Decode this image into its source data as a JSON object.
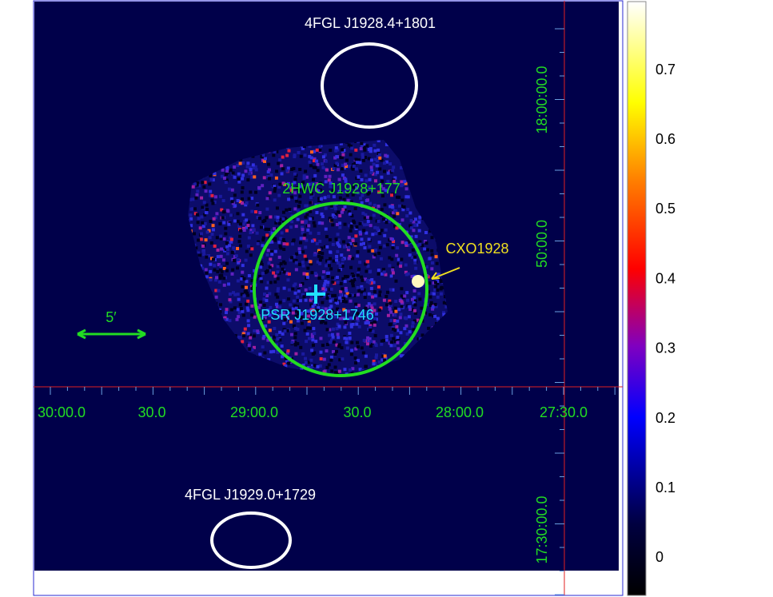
{
  "annotations": {
    "fermi_north": "4FGL J1928.4+1801",
    "hawc": "2HWC J1928+177",
    "pulsar": "PSR J1928+1746",
    "cxo": "CXO1928",
    "scale": "5′",
    "fermi_south": "4FGL J1929.0+1729"
  },
  "ra_labels": [
    "30:00.0",
    "30.0",
    "29:00.0",
    "30.0",
    "28:00.0",
    "27:30.0"
  ],
  "dec_labels": [
    "18:00:00.0",
    "50:00.0",
    "17:30:00.0"
  ],
  "colorbar_ticks": [
    0.7,
    0.6,
    0.5,
    0.4,
    0.3,
    0.2,
    0.1,
    0
  ]
}
